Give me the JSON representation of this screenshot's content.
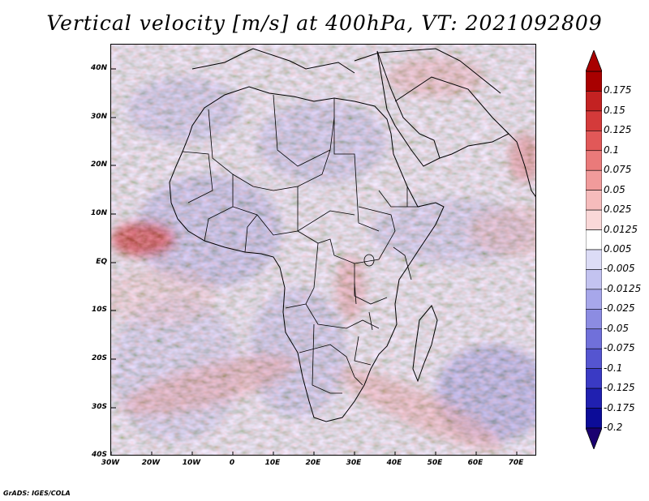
{
  "title": "Vertical velocity [m/s] at 400hPa, VT: 2021092809",
  "map": {
    "lat_labels": [
      "40N",
      "30N",
      "20N",
      "10N",
      "EQ",
      "10S",
      "20S",
      "30S",
      "40S"
    ],
    "lon_labels": [
      "30W",
      "20W",
      "10W",
      "0",
      "10E",
      "20E",
      "30E",
      "40E",
      "50E",
      "60E",
      "70E"
    ],
    "lon_range": [
      -30,
      75
    ],
    "lat_range": [
      -40,
      45
    ]
  },
  "colorbar": {
    "labels": [
      "0.175",
      "0.15",
      "0.125",
      "0.1",
      "0.075",
      "0.05",
      "0.025",
      "0.0125",
      "0.005",
      "-0.005",
      "-0.0125",
      "-0.025",
      "-0.05",
      "-0.075",
      "-0.1",
      "-0.125",
      "-0.175",
      "-0.2"
    ],
    "colors": [
      "#a80000",
      "#c32222",
      "#d43a3a",
      "#e15858",
      "#ea7a7a",
      "#f19b9b",
      "#f6bcbc",
      "#fad8d8",
      "#ffffff",
      "#dcdcf6",
      "#c3c3f0",
      "#a7a7ea",
      "#8c8ce2",
      "#7070da",
      "#5555d0",
      "#3a3ac4",
      "#2020b0",
      "#0c0c98"
    ],
    "top_arrow_color": "#a80000",
    "bottom_arrow_color": "#1a0070"
  },
  "credit": "GrADS: IGES/COLA"
}
